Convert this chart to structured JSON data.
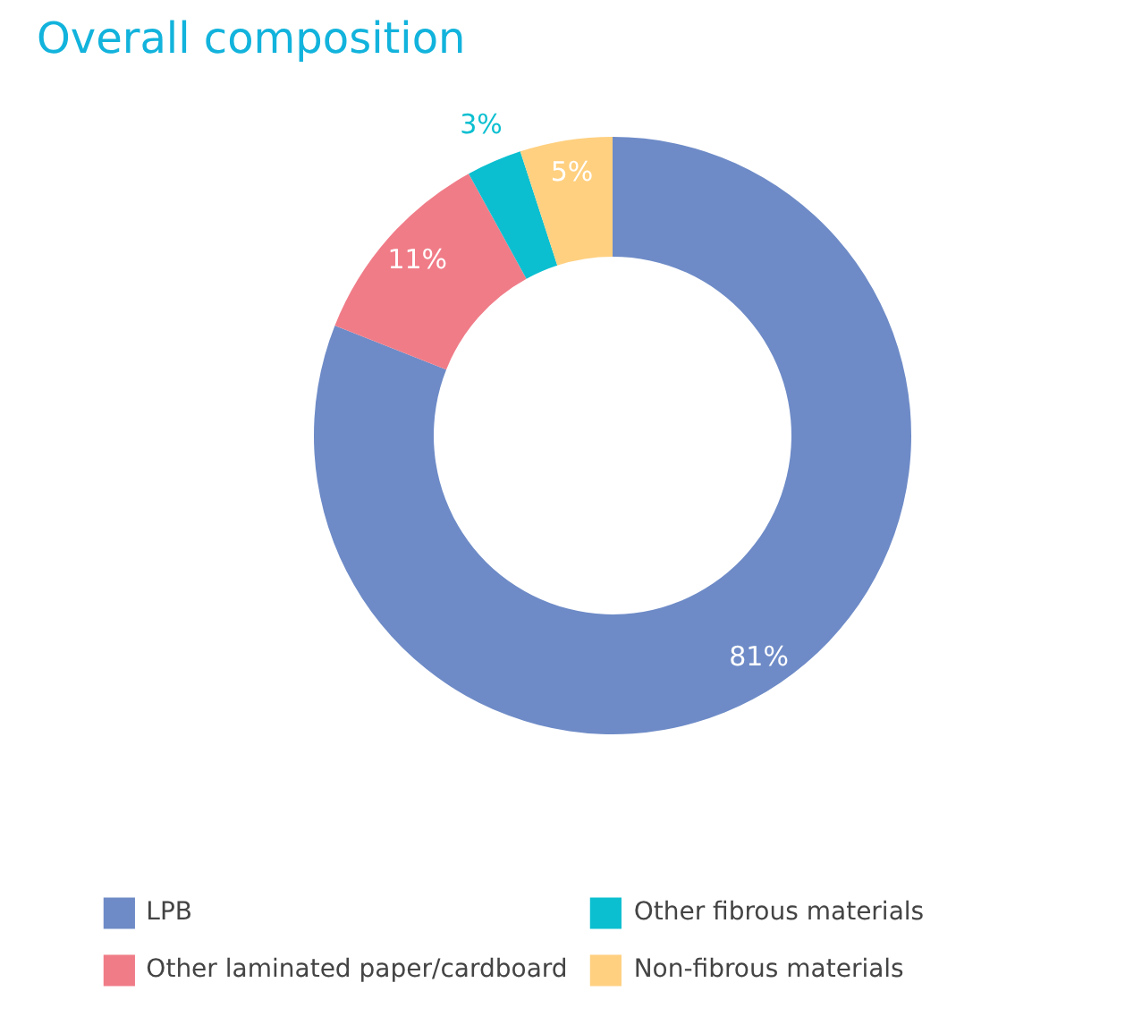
{
  "chart_data": {
    "type": "donut",
    "title": "Overall composition",
    "categories": [
      "LPB",
      "Other laminated paper/cardboard",
      "Other fibrous materials",
      "Non-fibrous materials"
    ],
    "values": [
      81,
      11,
      3,
      5
    ],
    "colors": [
      "#6e8bc7",
      "#f07c88",
      "#0bbfd0",
      "#ffd080"
    ],
    "value_labels": [
      "81%",
      "11%",
      "3%",
      "5%"
    ],
    "legend": "bottom"
  }
}
